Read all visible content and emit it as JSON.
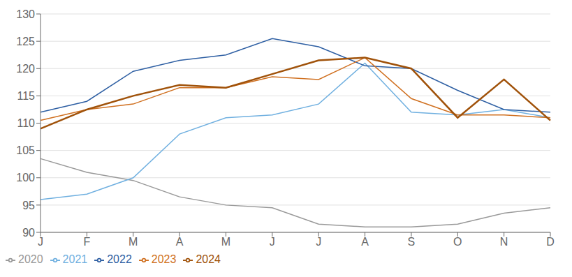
{
  "chart_data": {
    "type": "line",
    "categories": [
      "J",
      "F",
      "M",
      "A",
      "M",
      "J",
      "J",
      "A",
      "S",
      "O",
      "N",
      "D"
    ],
    "series": [
      {
        "name": "2020",
        "color": "#999999",
        "values": [
          103.5,
          101.0,
          99.5,
          96.5,
          95.0,
          94.5,
          91.5,
          91.0,
          91.0,
          91.5,
          93.5,
          94.5
        ]
      },
      {
        "name": "2021",
        "color": "#70B0E0",
        "values": [
          96.0,
          97.0,
          100.0,
          108.0,
          111.0,
          111.5,
          113.5,
          121.0,
          112.0,
          111.5,
          112.5,
          111.0
        ]
      },
      {
        "name": "2022",
        "color": "#2E5FA3",
        "values": [
          112.0,
          114.0,
          119.5,
          121.5,
          122.5,
          125.5,
          124.0,
          120.5,
          120.0,
          116.0,
          112.5,
          112.0
        ]
      },
      {
        "name": "2023",
        "color": "#D07020",
        "values": [
          110.5,
          112.5,
          113.5,
          116.5,
          116.5,
          118.5,
          118.0,
          122.0,
          114.5,
          111.5,
          111.5,
          111.0
        ]
      },
      {
        "name": "2024",
        "color": "#A0520A",
        "values": [
          109.0,
          112.5,
          115.0,
          117.0,
          116.5,
          119.0,
          121.5,
          122.0,
          120.0,
          111.0,
          118.0,
          110.5
        ]
      }
    ],
    "ylim": [
      90,
      130
    ],
    "yticks": [
      90,
      95,
      100,
      105,
      110,
      115,
      120,
      125,
      130
    ],
    "grid": true,
    "legend": "bottom"
  }
}
